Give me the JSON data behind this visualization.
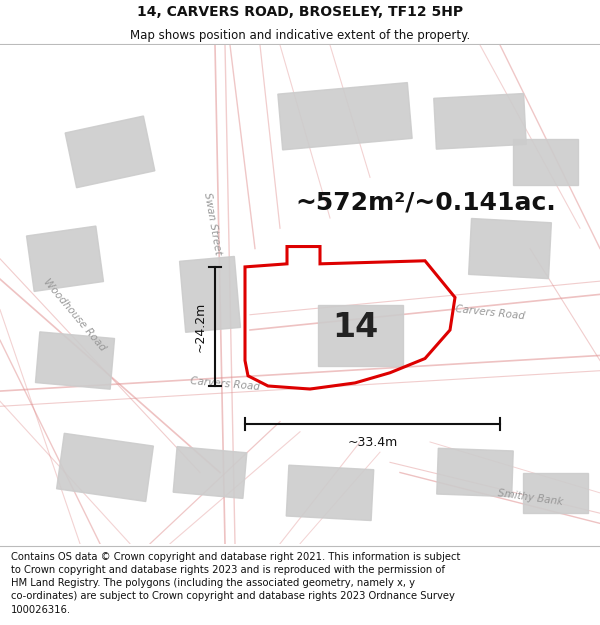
{
  "title": "14, CARVERS ROAD, BROSELEY, TF12 5HP",
  "subtitle": "Map shows position and indicative extent of the property.",
  "footer": "Contains OS data © Crown copyright and database right 2021. This information is subject\nto Crown copyright and database rights 2023 and is reproduced with the permission of\nHM Land Registry. The polygons (including the associated geometry, namely x, y\nco-ordinates) are subject to Crown copyright and database rights 2023 Ordnance Survey\n100026316.",
  "area_label": "~572m²/~0.141ac.",
  "property_number": "14",
  "dim_height": "~24.2m",
  "dim_width": "~33.4m",
  "map_bg": "#f2f2f2",
  "header_bg": "#ffffff",
  "footer_bg": "#ffffff",
  "road_label_carvers_lower": "Carvers Road",
  "road_label_carvers_upper": "Carvers Road",
  "road_label_swan": "Swan Street",
  "road_label_woodhouse": "Woodhouse Road",
  "road_label_smithy": "Smithy Bank",
  "property_polygon_color": "#dd0000",
  "building_color": "#cccccc",
  "road_line_color": "#e09090",
  "title_fontsize": 10,
  "subtitle_fontsize": 8.5,
  "footer_fontsize": 7.2,
  "area_fontsize": 18,
  "number_fontsize": 24,
  "road_label_fontsize": 7.5,
  "dim_fontsize": 9
}
